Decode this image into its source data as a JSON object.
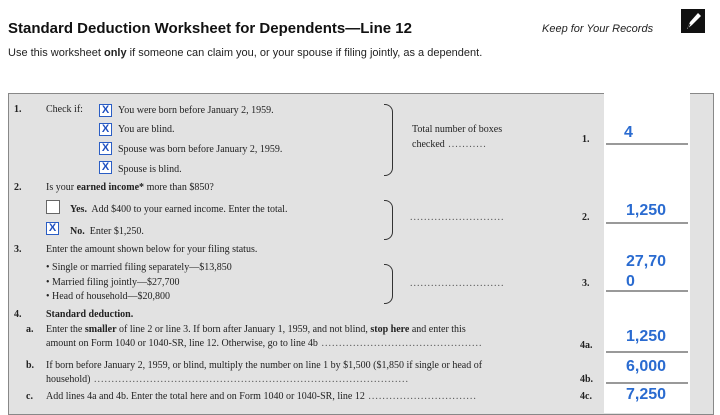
{
  "header": {
    "title": "Standard Deduction Worksheet for Dependents—Line 12",
    "keep": "Keep for Your Records",
    "subtitle_pre": "Use this worksheet ",
    "subtitle_bold": "only",
    "subtitle_post": " if someone can claim you, or your spouse if filing jointly, as a dependent."
  },
  "line1": {
    "num": "1.",
    "check_if": "Check if:",
    "items": [
      {
        "label": "You were born before January 2, 1959.",
        "checked": true
      },
      {
        "label": "You are blind.",
        "checked": true
      },
      {
        "label": "Spouse was born before January 2, 1959.",
        "checked": true
      },
      {
        "label": "Spouse is blind.",
        "checked": true
      }
    ],
    "total_label1": "Total number of boxes",
    "total_label2": "checked",
    "ref": "1.",
    "value": "4"
  },
  "line2": {
    "num": "2.",
    "q_pre": "Is your ",
    "q_bold": "earned income*",
    "q_post": " more than $850?",
    "yes_label": "Yes.",
    "yes_text": "Add $400 to your earned income. Enter the total.",
    "yes_checked": false,
    "no_label": "No.",
    "no_text": "Enter $1,250.",
    "no_checked": true,
    "ref": "2.",
    "value": "1,250"
  },
  "line3": {
    "num": "3.",
    "text": "Enter the amount shown below for your filing status.",
    "bullets": [
      "Single or married filing separately—$13,850",
      "Married filing jointly—$27,700",
      "Head of household—$20,800"
    ],
    "ref": "3.",
    "value1": "27,70",
    "value2": "0"
  },
  "line4": {
    "num": "4.",
    "title": "Standard deduction.",
    "a": {
      "letter": "a.",
      "t1": "Enter the ",
      "b1": "smaller",
      "t2": " of line 2 or line 3. If born after January 1, 1959, and not blind, ",
      "b2": "stop here",
      "t3": " and enter this",
      "l2": "amount on Form 1040 or 1040-SR, line 12. Otherwise, go to line 4b",
      "ref": "4a.",
      "value": "1,250"
    },
    "b": {
      "letter": "b.",
      "l1": "If born before January 2, 1959, or blind, multiply the number on line 1 by $1,500 ($1,850 if single or head of",
      "l2": "household)",
      "ref": "4b.",
      "value": "6,000"
    },
    "c": {
      "letter": "c.",
      "l1": "Add lines 4a and 4b. Enter the total here and on Form 1040 or 1040-SR, line 12",
      "ref": "4c.",
      "value": "7,250"
    }
  },
  "colors": {
    "value_blue": "#2a6bd0",
    "panel_gray": "#e2e2e2"
  }
}
